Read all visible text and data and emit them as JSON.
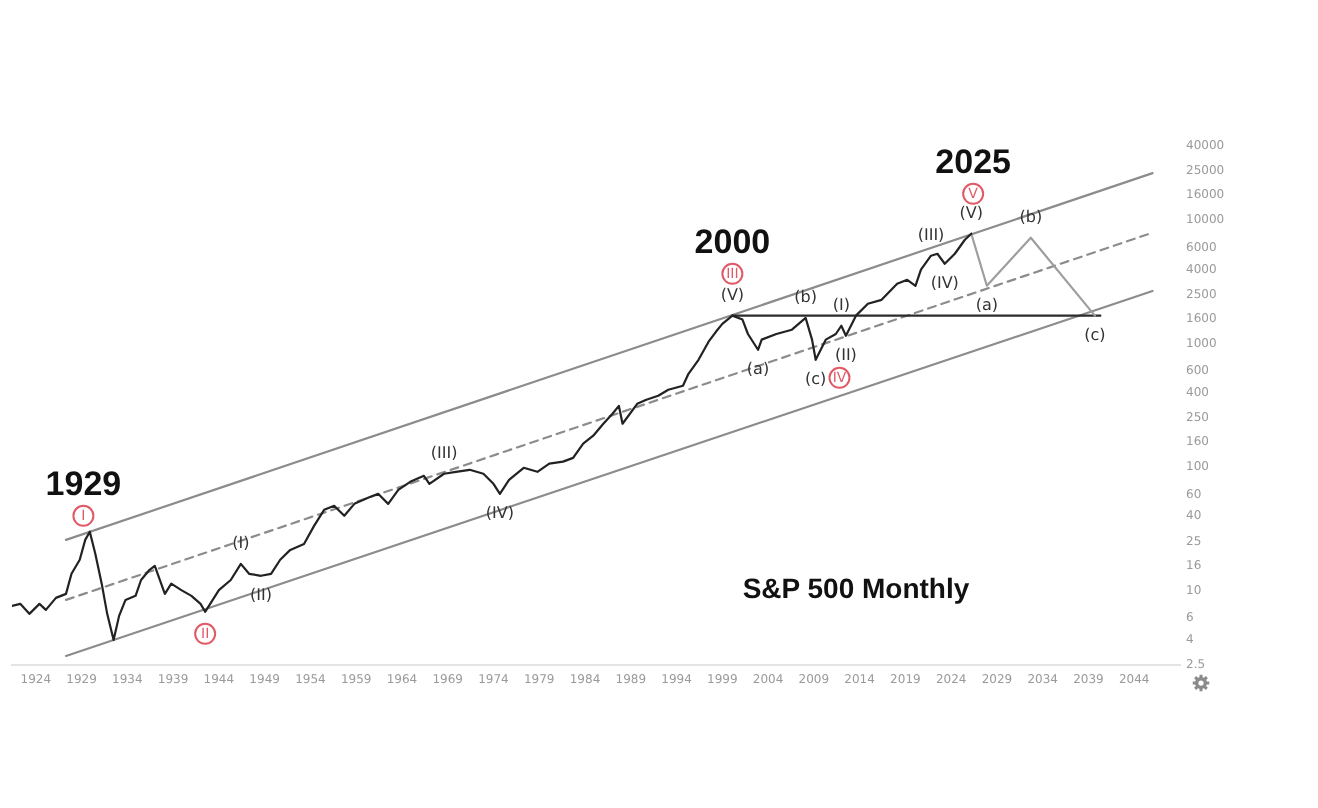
{
  "chart_data": {
    "type": "line",
    "title": "S&P 500 Monthly",
    "log": true,
    "marker": "none",
    "xlim": [
      1921.4,
      2049.0
    ],
    "xticks": [
      1924,
      1929,
      1934,
      1939,
      1944,
      1949,
      1954,
      1959,
      1964,
      1969,
      1974,
      1979,
      1984,
      1989,
      1994,
      1999,
      2004,
      2009,
      2014,
      2019,
      2024,
      2029,
      2034,
      2039,
      2044
    ],
    "ylim": [
      2.5,
      40000
    ],
    "yticks": [
      2.5,
      4,
      6,
      10,
      16,
      25,
      40,
      60,
      100,
      160,
      250,
      400,
      600,
      1000,
      1600,
      2500,
      4000,
      6000,
      10000,
      16000,
      25000,
      40000
    ],
    "series": [
      {
        "color": "#222222",
        "x": [
          1921.4,
          1922.3,
          1923.3,
          1924.4,
          1925.1,
          1926.2,
          1927.3,
          1927.9,
          1928.8,
          1929.4,
          1929.9,
          1930.5,
          1931.2,
          1931.8,
          1932.5,
          1933.1,
          1933.8,
          1934.9,
          1935.5,
          1936.4,
          1937.0,
          1938.1,
          1938.8,
          1939.9,
          1941.0,
          1942.0,
          1942.5,
          1944.0,
          1945.3,
          1946.4,
          1947.3,
          1948.6,
          1949.7,
          1950.7,
          1951.8,
          1953.3,
          1954.4,
          1955.5,
          1956.6,
          1957.7,
          1958.8,
          1960.3,
          1961.4,
          1962.5,
          1963.6,
          1964.9,
          1966.4,
          1967.0,
          1968.6,
          1969.9,
          1971.4,
          1972.9,
          1974.0,
          1974.7,
          1975.7,
          1977.3,
          1978.8,
          1980.1,
          1981.6,
          1982.7,
          1983.8,
          1984.9,
          1986.0,
          1987.0,
          1987.7,
          1988.1,
          1989.7,
          1990.7,
          1992.0,
          1993.1,
          1994.7,
          1995.3,
          1996.4,
          1997.5,
          1998.3,
          1999.0,
          2000.1,
          2001.2,
          2001.8,
          2002.9,
          2003.3,
          2004.9,
          2006.6,
          2008.1,
          2008.8,
          2009.2,
          2010.3,
          2011.4,
          2012.0,
          2012.5,
          2013.6,
          2014.9,
          2016.4,
          2018.1,
          2019.2,
          2020.1,
          2020.7,
          2021.8,
          2022.5,
          2023.3,
          2024.4,
          2025.5,
          2026.2
        ],
        "values": [
          7.53,
          7.82,
          6.49,
          7.82,
          6.99,
          8.74,
          9.42,
          13.7,
          17.8,
          25.8,
          30.0,
          19.9,
          11.4,
          6.49,
          3.99,
          6.25,
          8.42,
          9.08,
          12.2,
          14.7,
          15.9,
          9.42,
          11.4,
          10.1,
          9.08,
          7.82,
          6.74,
          10.1,
          12.2,
          16.5,
          13.7,
          13.2,
          13.7,
          17.8,
          21.4,
          23.9,
          33.5,
          45.2,
          48.7,
          40.4,
          50.5,
          56.5,
          60.9,
          50.5,
          65.6,
          76.1,
          85.2,
          73.4,
          88.5,
          91.8,
          95.3,
          88.5,
          73.4,
          60.9,
          79.0,
          98.9,
          91.8,
          107,
          111,
          119,
          155,
          180,
          225,
          271,
          314,
          225,
          326,
          352,
          379,
          424,
          457,
          571,
          742,
          1040,
          1250,
          1450,
          1690,
          1570,
          1200,
          894,
          1080,
          1200,
          1300,
          1620,
          1080,
          742,
          1080,
          1200,
          1400,
          1160,
          1690,
          2110,
          2270,
          3060,
          3300,
          2950,
          3980,
          5170,
          5360,
          4450,
          5360,
          6960,
          7790
        ]
      },
      {
        "color": "#9e9e9e",
        "x": [
          2026.2,
          2027.9,
          2032.7,
          2039.7
        ],
        "values": [
          7790,
          2950,
          7230,
          1690
        ]
      },
      {
        "color": "#2b2b2b",
        "x": [
          2000.1,
          2040.3
        ],
        "values": [
          1690,
          1690
        ]
      },
      {
        "color": "#8c8c8c",
        "x": [
          1927.3,
          2046.0
        ],
        "values": [
          25.8,
          24100
        ]
      },
      {
        "color": "#8c8c8c",
        "line_style": "dashed",
        "x": [
          1927.3,
          2046.0
        ],
        "values": [
          8.42,
          7940
        ]
      },
      {
        "color": "#8c8c8c",
        "x": [
          1927.3,
          2046.0
        ],
        "values": [
          2.96,
          2680
        ]
      },
      {
        "type": "scatter",
        "color": "#e05a66",
        "marker": "circle",
        "x": [
          1929.2,
          1942.5,
          2000.1,
          2011.8,
          2026.4
        ],
        "values": [
          40.4,
          4.47,
          3690,
          530,
          16400
        ],
        "value_labels": [
          "I",
          "II",
          "III",
          "IV",
          "V"
        ]
      }
    ],
    "annotations": [
      {
        "text": "1929",
        "x": 1929.2,
        "y": 40.4
      },
      {
        "text": "2000",
        "x": 2000.1,
        "y": 3690
      },
      {
        "text": "2025",
        "x": 2026.4,
        "y": 16400
      },
      {
        "text": "(I)",
        "x": 1946.4,
        "y": 16.5
      },
      {
        "text": "(II)",
        "x": 1948.6,
        "y": 13.2
      },
      {
        "text": "(III)",
        "x": 1968.6,
        "y": 88.5
      },
      {
        "text": "(IV)",
        "x": 1974.7,
        "y": 60.9
      },
      {
        "text": "(V)",
        "x": 2000.1,
        "y": 1690
      },
      {
        "text": "(a)",
        "x": 2002.9,
        "y": 894
      },
      {
        "text": "(b)",
        "x": 2008.1,
        "y": 1620
      },
      {
        "text": "(c)",
        "x": 2009.2,
        "y": 742
      },
      {
        "text": "(I)",
        "x": 2012.0,
        "y": 1400
      },
      {
        "text": "(II)",
        "x": 2012.5,
        "y": 1160
      },
      {
        "text": "(III)",
        "x": 2021.8,
        "y": 5170
      },
      {
        "text": "(IV)",
        "x": 2023.3,
        "y": 4450
      },
      {
        "text": "(V)",
        "x": 2026.2,
        "y": 7790
      },
      {
        "text": "(a)",
        "x": 2027.9,
        "y": 2950
      },
      {
        "text": "(b)",
        "x": 2032.7,
        "y": 7230
      },
      {
        "text": "(c)",
        "x": 2039.7,
        "y": 1690
      }
    ]
  }
}
